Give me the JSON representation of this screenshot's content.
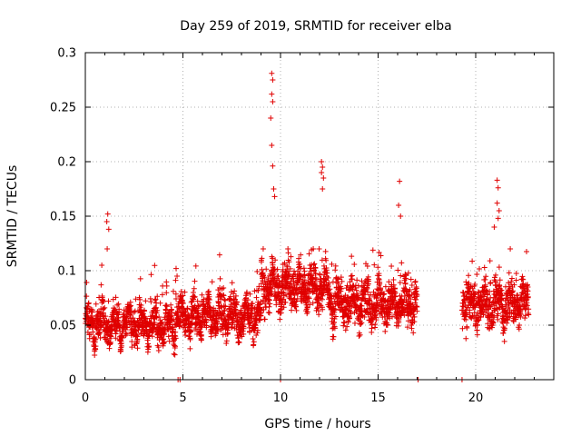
{
  "chart_data": {
    "type": "scatter",
    "title": "Day 259 of 2019, SRMTID for receiver elba",
    "xlabel": "GPS time / hours",
    "ylabel": "SRMTID / TECUs",
    "xlim": [
      0,
      24
    ],
    "ylim": [
      0,
      0.3
    ],
    "xticks": [
      0,
      5,
      10,
      15,
      20
    ],
    "xtick_labels": [
      "0",
      "5",
      "10",
      "15",
      "20"
    ],
    "yticks": [
      0,
      0.05,
      0.1,
      0.15,
      0.2,
      0.25,
      0.3
    ],
    "ytick_labels": [
      "0",
      "0.05",
      "0.1",
      "0.15",
      "0.2",
      "0.25",
      "0.3"
    ],
    "grid": true,
    "marker": "+",
    "color": "#e00000",
    "series": [
      {
        "name": "SRMTID",
        "segments": [
          {
            "x_start": 0.0,
            "x_end": 4.6,
            "baseline": 0.05,
            "spread": 0.022
          },
          {
            "x_start": 4.6,
            "x_end": 9.0,
            "baseline": 0.058,
            "spread": 0.025
          },
          {
            "x_start": 9.0,
            "x_end": 12.5,
            "baseline": 0.085,
            "spread": 0.028
          },
          {
            "x_start": 12.5,
            "x_end": 17.0,
            "baseline": 0.07,
            "spread": 0.028
          },
          {
            "x_start": 19.3,
            "x_end": 22.7,
            "baseline": 0.07,
            "spread": 0.03
          }
        ],
        "spikes": [
          {
            "x": 1.15,
            "y": 0.152
          },
          {
            "x": 1.1,
            "y": 0.145
          },
          {
            "x": 1.2,
            "y": 0.138
          },
          {
            "x": 1.12,
            "y": 0.12
          },
          {
            "x": 4.65,
            "y": 0.102
          },
          {
            "x": 4.7,
            "y": 0.095
          },
          {
            "x": 9.55,
            "y": 0.281
          },
          {
            "x": 9.6,
            "y": 0.275
          },
          {
            "x": 9.55,
            "y": 0.262
          },
          {
            "x": 9.6,
            "y": 0.255
          },
          {
            "x": 9.5,
            "y": 0.24
          },
          {
            "x": 9.55,
            "y": 0.215
          },
          {
            "x": 9.6,
            "y": 0.196
          },
          {
            "x": 9.65,
            "y": 0.175
          },
          {
            "x": 9.7,
            "y": 0.168
          },
          {
            "x": 12.1,
            "y": 0.2
          },
          {
            "x": 12.15,
            "y": 0.195
          },
          {
            "x": 12.1,
            "y": 0.19
          },
          {
            "x": 12.2,
            "y": 0.185
          },
          {
            "x": 12.15,
            "y": 0.175
          },
          {
            "x": 16.1,
            "y": 0.182
          },
          {
            "x": 16.05,
            "y": 0.16
          },
          {
            "x": 16.15,
            "y": 0.15
          },
          {
            "x": 21.1,
            "y": 0.183
          },
          {
            "x": 21.15,
            "y": 0.176
          },
          {
            "x": 21.1,
            "y": 0.162
          },
          {
            "x": 21.2,
            "y": 0.155
          },
          {
            "x": 21.15,
            "y": 0.148
          },
          {
            "x": 20.95,
            "y": 0.14
          }
        ],
        "lows": [
          {
            "x": 4.75,
            "y": 0.0
          },
          {
            "x": 4.85,
            "y": 0.0
          },
          {
            "x": 10.0,
            "y": 0.0
          },
          {
            "x": 17.05,
            "y": 0.0
          },
          {
            "x": 19.3,
            "y": 0.0
          }
        ]
      }
    ]
  }
}
